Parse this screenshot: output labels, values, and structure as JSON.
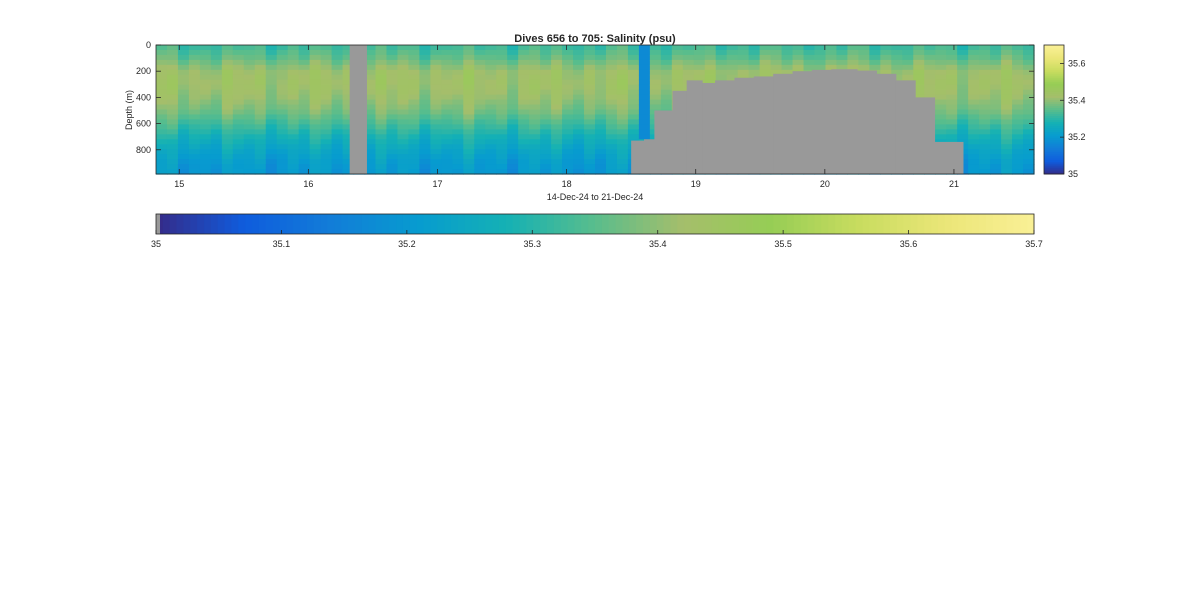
{
  "chart_data": {
    "type": "heatmap",
    "title": "Dives 656 to 705: Salinity (psu)",
    "xlabel": "14-Dec-24 to 21-Dec-24",
    "ylabel": "Depth (m)",
    "x_unit": "day of Dec-2024",
    "x_ticks": [
      "15",
      "16",
      "17",
      "18",
      "19",
      "20",
      "21"
    ],
    "x_tick_values": [
      15,
      16,
      17,
      18,
      19,
      20,
      21
    ],
    "xlim": [
      14.82,
      21.62
    ],
    "y_ticks": [
      "0",
      "200",
      "400",
      "600",
      "800"
    ],
    "y_tick_values": [
      0,
      200,
      400,
      600,
      800
    ],
    "ylim": [
      0,
      985
    ],
    "y_reversed": true,
    "clim": [
      35,
      35.7
    ],
    "colormap": "parula",
    "no_data_color": "#999999",
    "colorbar_ticks": [
      "35",
      "35.2",
      "35.4",
      "35.6"
    ],
    "colorbar_tick_values": [
      35,
      35.2,
      35.4,
      35.6
    ],
    "hcolorbar_ticks": [
      "35",
      "35.1",
      "35.2",
      "35.3",
      "35.4",
      "35.5",
      "35.6",
      "35.7"
    ],
    "hcolorbar_tick_values": [
      35,
      35.1,
      35.2,
      35.3,
      35.4,
      35.5,
      35.6,
      35.7
    ],
    "depth_profile": [
      {
        "depth": 0,
        "salinity": 35.32
      },
      {
        "depth": 100,
        "salinity": 35.36
      },
      {
        "depth": 200,
        "salinity": 35.42
      },
      {
        "depth": 300,
        "salinity": 35.43
      },
      {
        "depth": 400,
        "salinity": 35.41
      },
      {
        "depth": 500,
        "salinity": 35.38
      },
      {
        "depth": 600,
        "salinity": 35.33
      },
      {
        "depth": 700,
        "salinity": 35.28
      },
      {
        "depth": 800,
        "salinity": 35.24
      },
      {
        "depth": 900,
        "salinity": 35.21
      },
      {
        "depth": 985,
        "salinity": 35.2
      }
    ],
    "no_data_regions": [
      {
        "x_start": 16.32,
        "x_end": 16.45,
        "depth_top": 0
      },
      {
        "x_start": 18.5,
        "x_end": 18.6,
        "depth_top": 730
      },
      {
        "x_start": 18.6,
        "x_end": 18.68,
        "depth_top": 720
      },
      {
        "x_start": 18.68,
        "x_end": 18.82,
        "depth_top": 500
      },
      {
        "x_start": 18.82,
        "x_end": 18.93,
        "depth_top": 350
      },
      {
        "x_start": 18.93,
        "x_end": 19.05,
        "depth_top": 270
      },
      {
        "x_start": 19.05,
        "x_end": 19.15,
        "depth_top": 290
      },
      {
        "x_start": 19.15,
        "x_end": 19.3,
        "depth_top": 270
      },
      {
        "x_start": 19.3,
        "x_end": 19.45,
        "depth_top": 250
      },
      {
        "x_start": 19.45,
        "x_end": 19.6,
        "depth_top": 240
      },
      {
        "x_start": 19.6,
        "x_end": 19.75,
        "depth_top": 220
      },
      {
        "x_start": 19.75,
        "x_end": 19.9,
        "depth_top": 200
      },
      {
        "x_start": 19.9,
        "x_end": 20.05,
        "depth_top": 190
      },
      {
        "x_start": 20.05,
        "x_end": 20.25,
        "depth_top": 185
      },
      {
        "x_start": 20.25,
        "x_end": 20.4,
        "depth_top": 195
      },
      {
        "x_start": 20.4,
        "x_end": 20.55,
        "depth_top": 220
      },
      {
        "x_start": 20.55,
        "x_end": 20.7,
        "depth_top": 270
      },
      {
        "x_start": 20.7,
        "x_end": 20.85,
        "depth_top": 400
      },
      {
        "x_start": 20.85,
        "x_end": 21.07,
        "depth_top": 740
      }
    ],
    "anomalies": [
      {
        "x_start": 18.57,
        "x_end": 18.68,
        "depth_top": 0,
        "depth_bottom": 720,
        "salinity": 35.17
      }
    ]
  }
}
